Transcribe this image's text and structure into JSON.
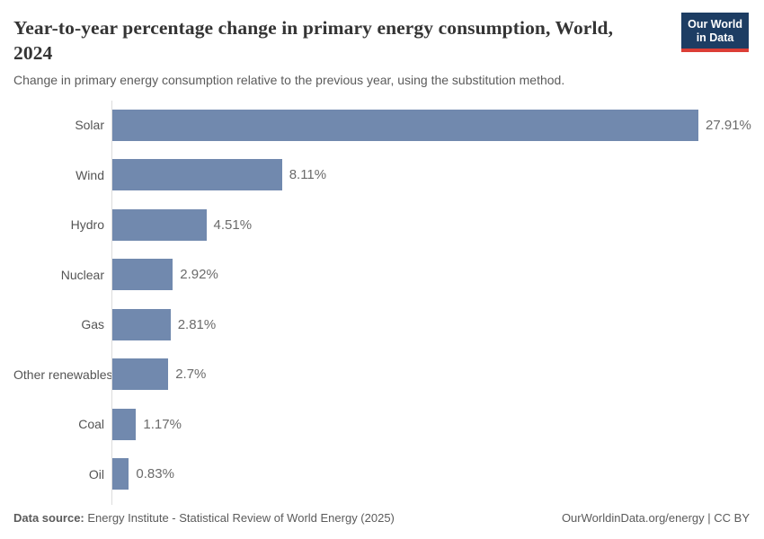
{
  "header": {
    "title": "Year-to-year percentage change in primary energy consumption, World, 2024",
    "subtitle": "Change in primary energy consumption relative to the previous year, using the substitution method."
  },
  "logo": {
    "line1": "Our World",
    "line2": "in Data"
  },
  "chart_data": {
    "type": "bar",
    "orientation": "horizontal",
    "categories": [
      "Solar",
      "Wind",
      "Hydro",
      "Nuclear",
      "Gas",
      "Other renewables",
      "Coal",
      "Oil"
    ],
    "values": [
      27.91,
      8.11,
      4.51,
      2.92,
      2.81,
      2.7,
      1.17,
      0.83
    ],
    "labels": [
      "27.91%",
      "8.11%",
      "4.51%",
      "2.92%",
      "2.81%",
      "2.7%",
      "1.17%",
      "0.83%"
    ],
    "title": "Year-to-year percentage change in primary energy consumption, World, 2024",
    "xlabel": "",
    "ylabel": "",
    "xlim": [
      0,
      27.91
    ],
    "grid": false,
    "legend": "none",
    "value_suffix": "%"
  },
  "colors": {
    "bar": "#7189ae",
    "logo_background": "#1d3d63",
    "logo_accent_red": "#dc3e36",
    "axis_line": "#dcdcdc"
  },
  "footer": {
    "source_label": "Data source:",
    "source_text": " Energy Institute - Statistical Review of World Energy (2025)",
    "right_text": "OurWorldinData.org/energy | CC BY"
  }
}
